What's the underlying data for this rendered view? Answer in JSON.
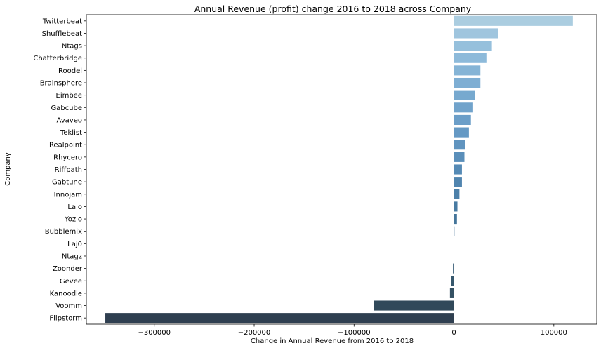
{
  "chart_data": {
    "type": "bar",
    "orientation": "horizontal",
    "title": "Annual Revenue (profit) change 2016 to 2018 across Company",
    "xlabel": "Change in Annual Revenue from 2016 to 2018",
    "ylabel": "Company",
    "xlim": [
      -368000,
      143000
    ],
    "xticks": [
      -300000,
      -200000,
      -100000,
      0,
      100000
    ],
    "xtick_labels": [
      "−300000",
      "−200000",
      "−100000",
      "0",
      "100000"
    ],
    "categories": [
      "Twitterbeat",
      "Shufflebeat",
      "Ntags",
      "Chatterbridge",
      "Roodel",
      "Brainsphere",
      "Eimbee",
      "Gabcube",
      "Avaveo",
      "Teklist",
      "Realpoint",
      "Rhycero",
      "Riffpath",
      "Gabtune",
      "Innojam",
      "Lajo",
      "Yozio",
      "Bubblemix",
      "Laj0",
      "Ntagz",
      "Zoonder",
      "Gevee",
      "Kanoodle",
      "Voomm",
      "Flipstorm"
    ],
    "values": [
      119000,
      44000,
      38000,
      32500,
      26500,
      26500,
      21000,
      18500,
      17000,
      15000,
      11000,
      10500,
      8000,
      8000,
      5500,
      3500,
      3000,
      500,
      0,
      0,
      -1000,
      -2500,
      -4000,
      -80500,
      -349000
    ],
    "colors": [
      "#abcde0",
      "#9fc5de",
      "#96c0dc",
      "#8dbada",
      "#85b4d6",
      "#7eaed3",
      "#77a9cf",
      "#71a3cb",
      "#6b9ec8",
      "#6599c4",
      "#6094bf",
      "#5a8fba",
      "#558ab5",
      "#5185af",
      "#4c80a9",
      "#487ba2",
      "#44759a",
      "#417092",
      "#3e6a89",
      "#3b6480",
      "#395e77",
      "#36586d",
      "#345163",
      "#31495a",
      "#2f3f50"
    ],
    "grid": false
  }
}
